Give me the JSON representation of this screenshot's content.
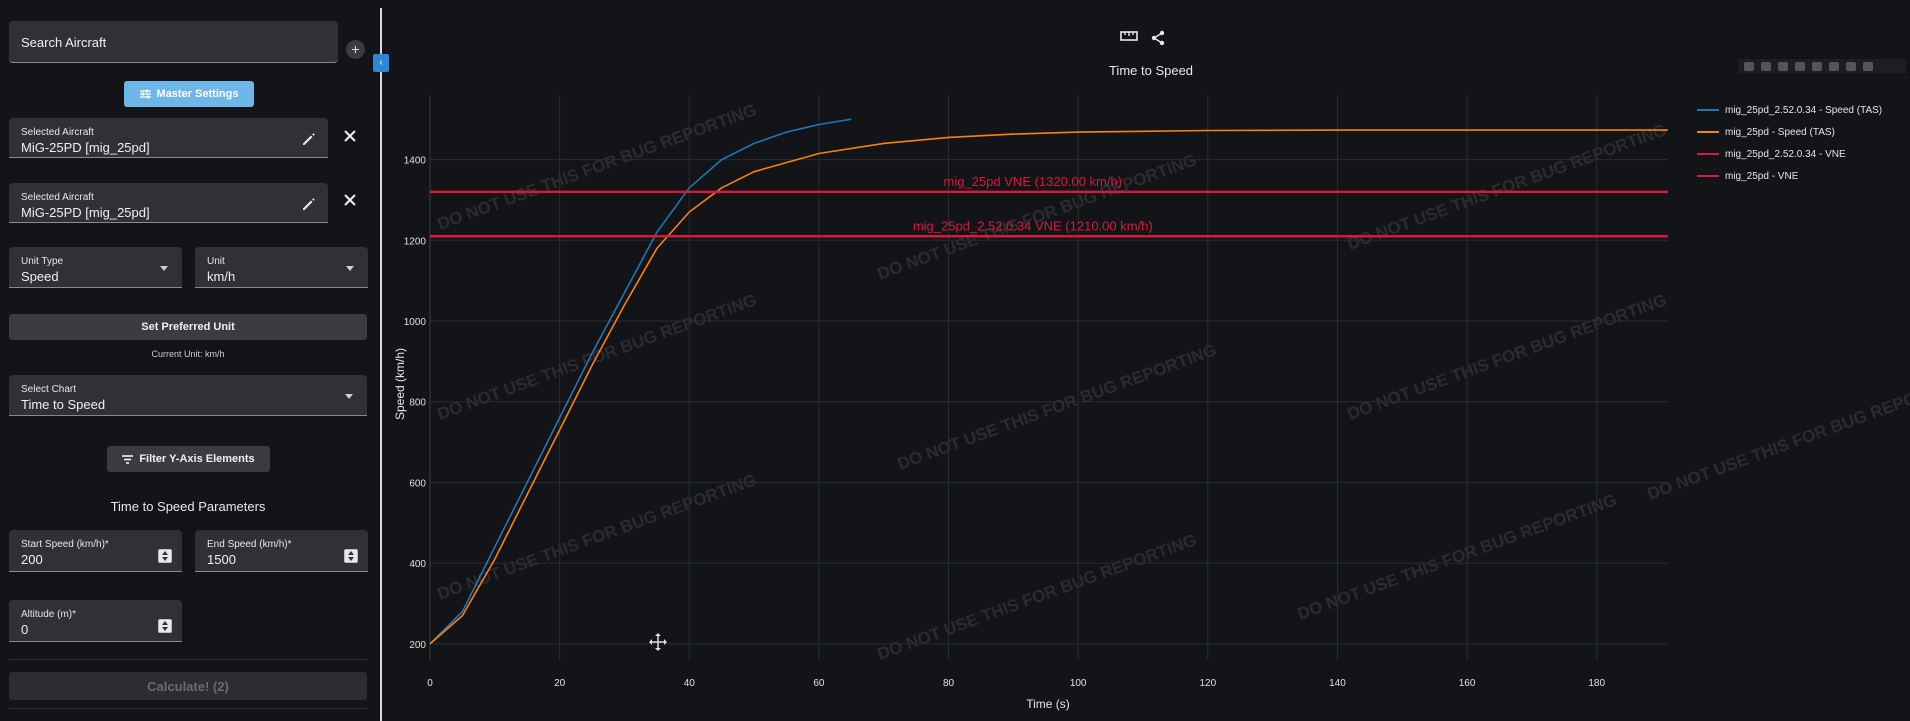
{
  "sidebar": {
    "search_label": "Search Aircraft",
    "add_symbol": "+",
    "master_settings_label": "Master Settings",
    "aircraft": [
      {
        "label": "Selected Aircraft",
        "value": "MiG-25PD [mig_25pd]"
      },
      {
        "label": "Selected Aircraft",
        "value": "MiG-25PD [mig_25pd]"
      }
    ],
    "unit_type": {
      "label": "Unit Type",
      "value": "Speed"
    },
    "unit": {
      "label": "Unit",
      "value": "km/h"
    },
    "set_preferred_label": "Set Preferred Unit",
    "current_unit_text": "Current Unit: km/h",
    "select_chart": {
      "label": "Select Chart",
      "value": "Time to Speed"
    },
    "filter_label": "Filter Y-Axis Elements",
    "params_title": "Time to Speed Parameters",
    "start_speed": {
      "label": "Start Speed (km/h)",
      "value": "200"
    },
    "end_speed": {
      "label": "End Speed (km/h)",
      "value": "1500"
    },
    "altitude": {
      "label": "Altitude (m)",
      "value": "0"
    },
    "required_mark": "*",
    "calculate_label": "Calculate! (2)"
  },
  "chart": {
    "title": "Time to Speed",
    "watermark": "DO NOT USE THIS FOR BUG REPORTING",
    "colors": {
      "series1": "#1f77b4",
      "series2": "#ff7f0e",
      "vne": "#d41b3d",
      "grid": "#2a2d31"
    }
  },
  "chart_data": {
    "type": "line",
    "title": "Time to Speed",
    "xlabel": "Time (s)",
    "ylabel": "Speed (km/h)",
    "xlim": [
      0,
      191
    ],
    "ylim": [
      160,
      1560
    ],
    "x_ticks": [
      0,
      20,
      40,
      60,
      80,
      100,
      120,
      140,
      160,
      180
    ],
    "y_ticks": [
      200,
      400,
      600,
      800,
      1000,
      1200,
      1400
    ],
    "grid": true,
    "legend_position": "top-right",
    "series": [
      {
        "name": "mig_25pd_2.52.0.34 - Speed (TAS)",
        "color": "#1f77b4",
        "x": [
          0,
          5,
          10,
          15,
          20,
          25,
          30,
          35,
          40,
          45,
          50,
          55,
          60,
          65
        ],
        "y": [
          200,
          280,
          440,
          600,
          760,
          920,
          1070,
          1220,
          1330,
          1400,
          1440,
          1468,
          1487,
          1500
        ]
      },
      {
        "name": "mig_25pd - Speed (TAS)",
        "color": "#ff7f0e",
        "x": [
          0,
          5,
          10,
          15,
          20,
          25,
          30,
          35,
          40,
          45,
          50,
          60,
          70,
          80,
          90,
          100,
          120,
          140,
          160,
          191
        ],
        "y": [
          200,
          270,
          410,
          570,
          730,
          890,
          1040,
          1180,
          1270,
          1330,
          1370,
          1415,
          1440,
          1455,
          1463,
          1468,
          1472,
          1473,
          1473,
          1473
        ]
      },
      {
        "name": "mig_25pd_2.52.0.34 - VNE",
        "color": "#d41b3d",
        "x": [
          0,
          191
        ],
        "y": [
          1210,
          1210
        ]
      },
      {
        "name": "mig_25pd - VNE",
        "color": "#d41b3d",
        "x": [
          0,
          191
        ],
        "y": [
          1320,
          1320
        ]
      }
    ],
    "annotations": [
      {
        "text": "mig_25pd VNE (1320.00 km/h)",
        "x": 93,
        "y": 1320
      },
      {
        "text": "mig_25pd_2.52.0.34 VNE (1210.00 km/h)",
        "x": 93,
        "y": 1210
      }
    ]
  }
}
